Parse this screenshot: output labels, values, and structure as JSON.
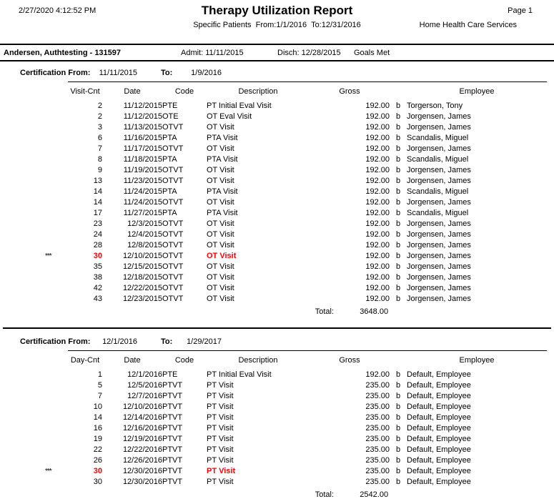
{
  "header": {
    "datetime": "2/27/2020 4:12:52 PM",
    "title": "Therapy Utilization Report",
    "subtitle": "Specific Patients  From:1/1/2016  To:12/31/2016",
    "page": "Page 1",
    "agency": "Home Health Care Services"
  },
  "patient": {
    "name": "Andersen, Authtesting - 131597",
    "admit": "Admit: 11/11/2015",
    "disch": "Disch: 12/28/2015",
    "status": "Goals Met"
  },
  "colors": {
    "highlight": "#ff0000",
    "text": "#000000"
  },
  "sections": [
    {
      "cert_from_label": "Certification From:",
      "cert_from": "11/11/2015",
      "cert_to_label": "To:",
      "cert_to": "1/9/2016",
      "columns": [
        "Visit-Cnt",
        "Date",
        "Code",
        "Description",
        "Gross",
        "Employee"
      ],
      "rows": [
        {
          "marker": "",
          "cnt": "2",
          "date": "11/12/2015",
          "code": "PTE",
          "desc": "PT Initial Eval Visit",
          "gross": "192.00",
          "flag": "b",
          "employee": "Torgerson, Tony",
          "highlight": false
        },
        {
          "marker": "",
          "cnt": "2",
          "date": "11/12/2015",
          "code": "OTE",
          "desc": "OT Eval Visit",
          "gross": "192.00",
          "flag": "b",
          "employee": "Jorgensen, James",
          "highlight": false
        },
        {
          "marker": "",
          "cnt": "3",
          "date": "11/13/2015",
          "code": "OTVT",
          "desc": "OT Visit",
          "gross": "192.00",
          "flag": "b",
          "employee": "Jorgensen, James",
          "highlight": false
        },
        {
          "marker": "",
          "cnt": "6",
          "date": "11/16/2015",
          "code": "PTA",
          "desc": "PTA Visit",
          "gross": "192.00",
          "flag": "b",
          "employee": "Scandalis, Miguel",
          "highlight": false
        },
        {
          "marker": "",
          "cnt": "7",
          "date": "11/17/2015",
          "code": "OTVT",
          "desc": "OT Visit",
          "gross": "192.00",
          "flag": "b",
          "employee": "Jorgensen, James",
          "highlight": false
        },
        {
          "marker": "",
          "cnt": "8",
          "date": "11/18/2015",
          "code": "PTA",
          "desc": "PTA Visit",
          "gross": "192.00",
          "flag": "b",
          "employee": "Scandalis, Miguel",
          "highlight": false
        },
        {
          "marker": "",
          "cnt": "9",
          "date": "11/19/2015",
          "code": "OTVT",
          "desc": "OT Visit",
          "gross": "192.00",
          "flag": "b",
          "employee": "Jorgensen, James",
          "highlight": false
        },
        {
          "marker": "",
          "cnt": "13",
          "date": "11/23/2015",
          "code": "OTVT",
          "desc": "OT Visit",
          "gross": "192.00",
          "flag": "b",
          "employee": "Jorgensen, James",
          "highlight": false
        },
        {
          "marker": "",
          "cnt": "14",
          "date": "11/24/2015",
          "code": "PTA",
          "desc": "PTA Visit",
          "gross": "192.00",
          "flag": "b",
          "employee": "Scandalis, Miguel",
          "highlight": false
        },
        {
          "marker": "",
          "cnt": "14",
          "date": "11/24/2015",
          "code": "OTVT",
          "desc": "OT Visit",
          "gross": "192.00",
          "flag": "b",
          "employee": "Jorgensen, James",
          "highlight": false
        },
        {
          "marker": "",
          "cnt": "17",
          "date": "11/27/2015",
          "code": "PTA",
          "desc": "PTA Visit",
          "gross": "192.00",
          "flag": "b",
          "employee": "Scandalis, Miguel",
          "highlight": false
        },
        {
          "marker": "",
          "cnt": "23",
          "date": "12/3/2015",
          "code": "OTVT",
          "desc": "OT Visit",
          "gross": "192.00",
          "flag": "b",
          "employee": "Jorgensen, James",
          "highlight": false
        },
        {
          "marker": "",
          "cnt": "24",
          "date": "12/4/2015",
          "code": "OTVT",
          "desc": "OT Visit",
          "gross": "192.00",
          "flag": "b",
          "employee": "Jorgensen, James",
          "highlight": false
        },
        {
          "marker": "",
          "cnt": "28",
          "date": "12/8/2015",
          "code": "OTVT",
          "desc": "OT Visit",
          "gross": "192.00",
          "flag": "b",
          "employee": "Jorgensen, James",
          "highlight": false
        },
        {
          "marker": "***",
          "cnt": "30",
          "date": "12/10/2015",
          "code": "OTVT",
          "desc": "OT Visit",
          "gross": "192.00",
          "flag": "b",
          "employee": "Jorgensen, James",
          "highlight": true
        },
        {
          "marker": "",
          "cnt": "35",
          "date": "12/15/2015",
          "code": "OTVT",
          "desc": "OT Visit",
          "gross": "192.00",
          "flag": "b",
          "employee": "Jorgensen, James",
          "highlight": false
        },
        {
          "marker": "",
          "cnt": "38",
          "date": "12/18/2015",
          "code": "OTVT",
          "desc": "OT Visit",
          "gross": "192.00",
          "flag": "b",
          "employee": "Jorgensen, James",
          "highlight": false
        },
        {
          "marker": "",
          "cnt": "42",
          "date": "12/22/2015",
          "code": "OTVT",
          "desc": "OT Visit",
          "gross": "192.00",
          "flag": "b",
          "employee": "Jorgensen, James",
          "highlight": false
        },
        {
          "marker": "",
          "cnt": "43",
          "date": "12/23/2015",
          "code": "OTVT",
          "desc": "OT Visit",
          "gross": "192.00",
          "flag": "b",
          "employee": "Jorgensen, James",
          "highlight": false
        }
      ],
      "total_label": "Total:",
      "total": "3648.00"
    },
    {
      "cert_from_label": "Certification From:",
      "cert_from": "12/1/2016",
      "cert_to_label": "To:",
      "cert_to": "1/29/2017",
      "columns": [
        "Day-Cnt",
        "Date",
        "Code",
        "Description",
        "Gross",
        "Employee"
      ],
      "rows": [
        {
          "marker": "",
          "cnt": "1",
          "date": "12/1/2016",
          "code": "PTE",
          "desc": "PT Initial Eval Visit",
          "gross": "192.00",
          "flag": "b",
          "employee": "Default, Employee",
          "highlight": false
        },
        {
          "marker": "",
          "cnt": "5",
          "date": "12/5/2016",
          "code": "PTVT",
          "desc": "PT Visit",
          "gross": "235.00",
          "flag": "b",
          "employee": "Default, Employee",
          "highlight": false
        },
        {
          "marker": "",
          "cnt": "7",
          "date": "12/7/2016",
          "code": "PTVT",
          "desc": "PT Visit",
          "gross": "235.00",
          "flag": "b",
          "employee": "Default, Employee",
          "highlight": false
        },
        {
          "marker": "",
          "cnt": "10",
          "date": "12/10/2016",
          "code": "PTVT",
          "desc": "PT Visit",
          "gross": "235.00",
          "flag": "b",
          "employee": "Default, Employee",
          "highlight": false
        },
        {
          "marker": "",
          "cnt": "14",
          "date": "12/14/2016",
          "code": "PTVT",
          "desc": "PT Visit",
          "gross": "235.00",
          "flag": "b",
          "employee": "Default, Employee",
          "highlight": false
        },
        {
          "marker": "",
          "cnt": "16",
          "date": "12/16/2016",
          "code": "PTVT",
          "desc": "PT Visit",
          "gross": "235.00",
          "flag": "b",
          "employee": "Default, Employee",
          "highlight": false
        },
        {
          "marker": "",
          "cnt": "19",
          "date": "12/19/2016",
          "code": "PTVT",
          "desc": "PT Visit",
          "gross": "235.00",
          "flag": "b",
          "employee": "Default, Employee",
          "highlight": false
        },
        {
          "marker": "",
          "cnt": "22",
          "date": "12/22/2016",
          "code": "PTVT",
          "desc": "PT Visit",
          "gross": "235.00",
          "flag": "b",
          "employee": "Default, Employee",
          "highlight": false
        },
        {
          "marker": "",
          "cnt": "26",
          "date": "12/26/2016",
          "code": "PTVT",
          "desc": "PT Visit",
          "gross": "235.00",
          "flag": "b",
          "employee": "Default, Employee",
          "highlight": false
        },
        {
          "marker": "***",
          "cnt": "30",
          "date": "12/30/2016",
          "code": "PTVT",
          "desc": "PT Visit",
          "gross": "235.00",
          "flag": "b",
          "employee": "Default, Employee",
          "highlight": true
        },
        {
          "marker": "",
          "cnt": "30",
          "date": "12/30/2016",
          "code": "PTVT",
          "desc": "PT Visit",
          "gross": "235.00",
          "flag": "b",
          "employee": "Default, Employee",
          "highlight": false
        }
      ],
      "total_label": "Total:",
      "total": "2542.00"
    }
  ]
}
